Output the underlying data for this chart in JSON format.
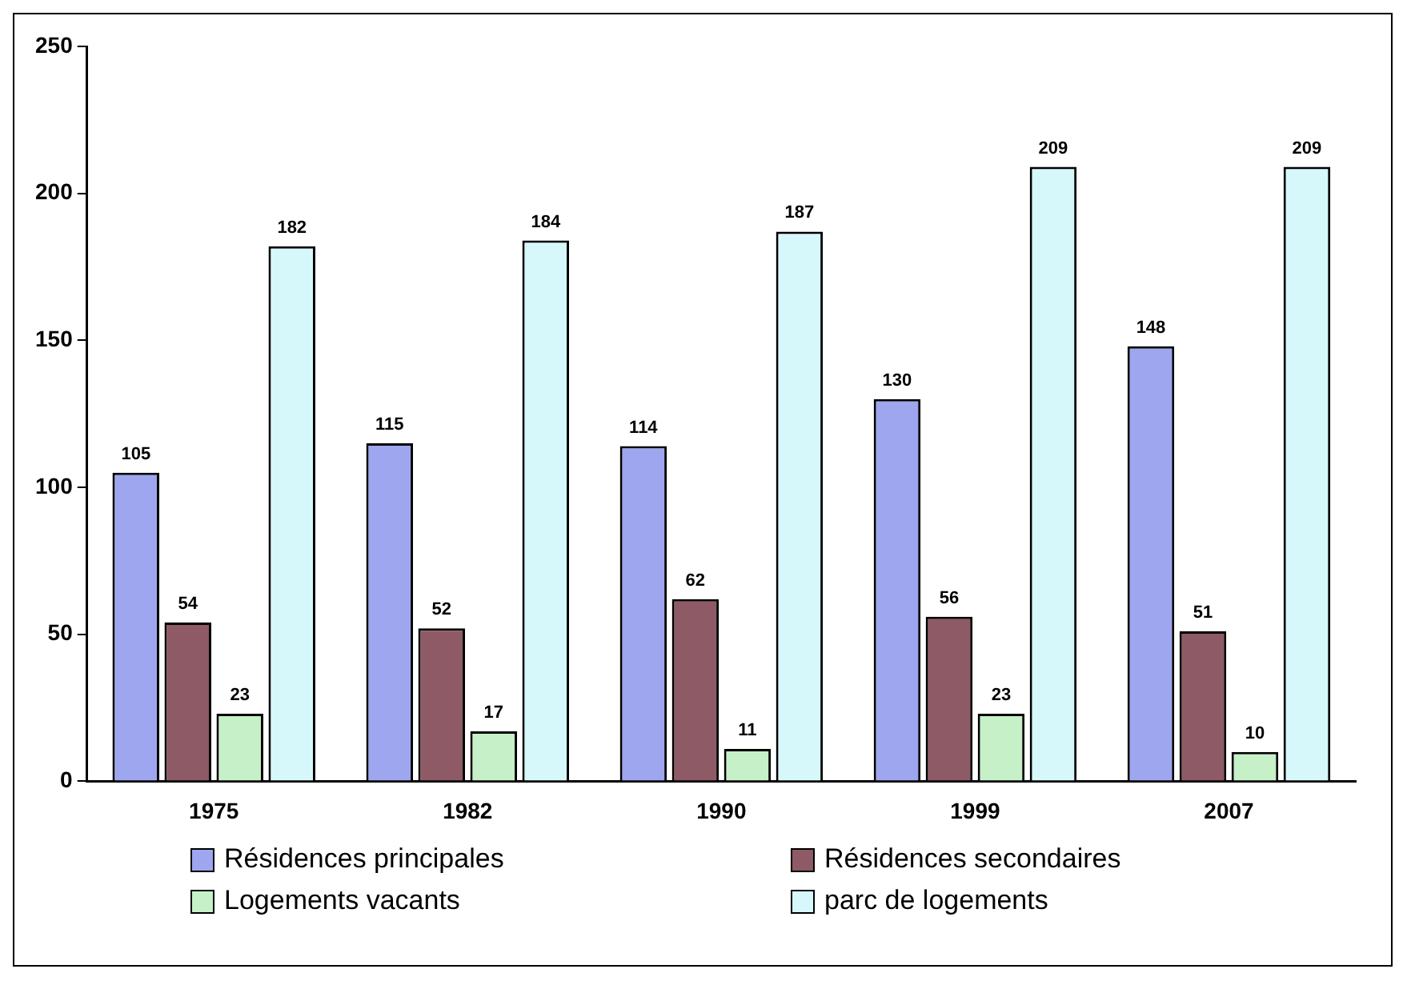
{
  "chart_data": {
    "type": "bar",
    "categories": [
      "1975",
      "1982",
      "1990",
      "1999",
      "2007"
    ],
    "series": [
      {
        "name": "Résidences principales",
        "color": "#9da6ee",
        "values": [
          105,
          115,
          114,
          130,
          148
        ]
      },
      {
        "name": "Résidences secondaires",
        "color": "#8e5a66",
        "values": [
          54,
          52,
          62,
          56,
          51
        ]
      },
      {
        "name": "Logements vacants",
        "color": "#c6f0c8",
        "values": [
          23,
          17,
          11,
          23,
          10
        ]
      },
      {
        "name": "parc de logements",
        "color": "#d6f8fa",
        "values": [
          182,
          184,
          187,
          209,
          209
        ]
      }
    ],
    "ylim": [
      0,
      250
    ],
    "yticks": [
      0,
      50,
      100,
      150,
      200,
      250
    ],
    "grid": false,
    "legend": "bottom",
    "data_labels": true
  }
}
